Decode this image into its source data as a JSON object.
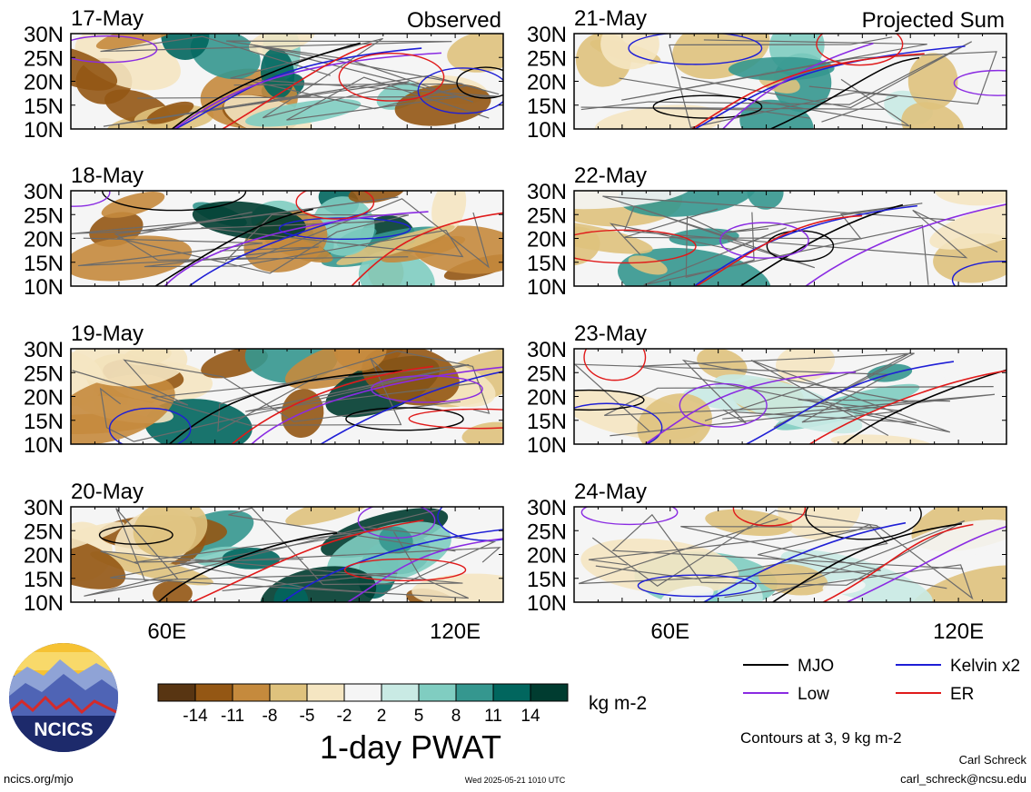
{
  "chart_data": {
    "type": "heatmap",
    "title": "1-day PWAT",
    "units": "kg m-2",
    "columns": [
      {
        "label": "Observed",
        "panels": [
          "17-May",
          "18-May",
          "19-May",
          "20-May"
        ]
      },
      {
        "label": "Projected Sum",
        "panels": [
          "21-May",
          "22-May",
          "23-May",
          "24-May"
        ]
      }
    ],
    "y_ticks": [
      "30N",
      "25N",
      "20N",
      "15N",
      "10N"
    ],
    "ylim": [
      10,
      30
    ],
    "x_ticks": [
      "60E",
      "120E"
    ],
    "x_tick_values": [
      60,
      120
    ],
    "xlim": [
      40,
      130
    ],
    "colorbar": {
      "labels": [
        "-14",
        "-11",
        "-8",
        "-5",
        "-2",
        "2",
        "5",
        "8",
        "11",
        "14"
      ],
      "colors": [
        "#583512",
        "#945714",
        "#c58a3d",
        "#dfc27d",
        "#f5e6c2",
        "#f5f5f5",
        "#c9eae4",
        "#80cdc1",
        "#35978f",
        "#01665e",
        "#003c30"
      ]
    },
    "legend": [
      {
        "label": "MJO",
        "color": "#000000"
      },
      {
        "label": "Kelvin x2",
        "color": "#1f1fd6"
      },
      {
        "label": "Low",
        "color": "#8a2be2"
      },
      {
        "label": "ER",
        "color": "#e01a1a"
      }
    ],
    "contour_note": "Contours at 3, 9 kg m-2"
  },
  "footer": {
    "logo_text": "NCICS",
    "left_url": "ncics.org/mjo",
    "timestamp": "Wed 2025-05-21 1010 UTC",
    "author": "Carl Schreck",
    "email": "carl_schreck@ncsu.edu"
  }
}
